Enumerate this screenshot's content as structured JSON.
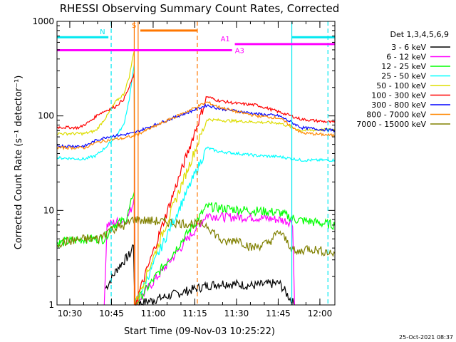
{
  "chart_data": {
    "type": "line",
    "title": "RHESSI Observing Summary Count Rates, Corrected",
    "xlabel": "Start Time (09-Nov-03 10:25:22)",
    "ylabel": "Corrected Count Rate (s⁻¹ detector⁻¹)",
    "x_unit": "minutes after 10:25:22",
    "xlim": [
      0,
      100
    ],
    "ylim": [
      1,
      1000
    ],
    "y_scale": "log",
    "x_ticks": [
      {
        "x": 4.6,
        "label": "10:30"
      },
      {
        "x": 19.6,
        "label": "10:45"
      },
      {
        "x": 34.6,
        "label": "11:00"
      },
      {
        "x": 49.6,
        "label": "11:15"
      },
      {
        "x": 64.6,
        "label": "11:30"
      },
      {
        "x": 79.6,
        "label": "11:45"
      },
      {
        "x": 94.6,
        "label": "12:00"
      }
    ],
    "y_ticks": [
      {
        "y": 1,
        "label": "1"
      },
      {
        "y": 10,
        "label": "10"
      },
      {
        "y": 100,
        "label": "100"
      },
      {
        "y": 1000,
        "label": "1000"
      }
    ],
    "legend_title": "Det 1,3,4,5,6,9",
    "legend_position": "right",
    "series": [
      {
        "name": "3 - 6 keV",
        "color": "#000000",
        "x": [
          17.5,
          22,
          26.5,
          27.5,
          28,
          54,
          60,
          70,
          80,
          85.5
        ],
        "y": [
          1.5,
          2.5,
          3.5,
          4.5,
          1,
          1.6,
          1.7,
          1.6,
          1.7,
          1
        ]
      },
      {
        "name": "6 - 12 keV",
        "color": "#ff00ff",
        "x": [
          17,
          18,
          21,
          25,
          27,
          27.8,
          28,
          54,
          60,
          70,
          80,
          84.8,
          85.5
        ],
        "y": [
          1,
          7,
          7.5,
          8,
          11,
          14,
          1,
          9,
          8.5,
          8.5,
          8,
          7.5,
          1
        ]
      },
      {
        "name": "12 - 25 keV",
        "color": "#00ff00",
        "x": [
          0,
          10,
          17,
          20,
          25,
          27,
          27.8,
          28,
          54,
          60,
          70,
          80,
          86,
          100
        ],
        "y": [
          4.5,
          5,
          5,
          7,
          8,
          13,
          16,
          1,
          11,
          10.5,
          10,
          9.5,
          8,
          7
        ]
      },
      {
        "name": "25 - 50 keV",
        "color": "#00ffff",
        "x": [
          0,
          10,
          14,
          18,
          21,
          24,
          26,
          27.8,
          28,
          54,
          58,
          65,
          72,
          80,
          88,
          100
        ],
        "y": [
          36,
          35,
          38,
          48,
          60,
          80,
          150,
          350,
          1,
          46,
          42,
          40,
          38,
          37,
          34,
          34
        ]
      },
      {
        "name": "50 - 100 keV",
        "color": "#dddd00",
        "x": [
          0,
          10,
          14,
          18,
          21,
          24,
          26,
          27.8,
          28,
          54,
          58,
          65,
          72,
          80,
          88,
          100
        ],
        "y": [
          65,
          65,
          70,
          100,
          140,
          170,
          260,
          500,
          1,
          92,
          90,
          88,
          86,
          84,
          70,
          72
        ]
      },
      {
        "name": "100 - 300 keV",
        "color": "#ff0000",
        "x": [
          0,
          8,
          12,
          15,
          18,
          21,
          24,
          26,
          27.8,
          28,
          54,
          58,
          65,
          72,
          80,
          88,
          100
        ],
        "y": [
          76,
          75,
          88,
          105,
          115,
          125,
          150,
          200,
          280,
          1,
          160,
          145,
          135,
          130,
          110,
          92,
          85
        ]
      },
      {
        "name": "300 - 800 keV",
        "color": "#0000ff",
        "x": [
          0,
          10,
          14,
          18,
          21,
          24,
          26,
          27,
          54,
          58,
          65,
          72,
          80,
          88,
          100
        ],
        "y": [
          48,
          48,
          55,
          60,
          62,
          63,
          65,
          65,
          130,
          120,
          112,
          105,
          100,
          75,
          70
        ]
      },
      {
        "name": "800 - 7000 keV",
        "color": "#ff8800",
        "x": [
          0,
          10,
          14,
          18,
          21,
          24,
          26,
          27,
          54,
          58,
          65,
          72,
          80,
          88,
          100
        ],
        "y": [
          46,
          46,
          52,
          55,
          57,
          58,
          60,
          60,
          140,
          125,
          110,
          100,
          95,
          66,
          62
        ]
      },
      {
        "name": "7000 - 15000 keV",
        "color": "#808000",
        "x": [
          0,
          10,
          15,
          18,
          21,
          25,
          27,
          27.5,
          54,
          60,
          65,
          70,
          76,
          80,
          86,
          90,
          100
        ],
        "y": [
          4.5,
          5,
          5,
          6,
          6.5,
          7,
          8,
          8,
          7,
          4.5,
          5,
          4,
          4.5,
          6,
          3.5,
          4,
          3.5
        ]
      }
    ],
    "annotations": [
      {
        "label": "N",
        "color": "#00e8f0",
        "x_start": 0,
        "x_end": 18.5,
        "y": 680
      },
      {
        "label": "",
        "color": "#00e8f0",
        "x_start": 84.5,
        "x_end": 100,
        "y": 680
      },
      {
        "label": "S",
        "color": "#ff7700",
        "x_start": 30,
        "x_end": 50.5,
        "y": 800
      },
      {
        "label": "A1",
        "color": "#ff00ff",
        "x_start": 64,
        "x_end": 100,
        "y": 575
      },
      {
        "label": "A3",
        "color": "#ff00ff",
        "x_start": 0,
        "x_end": 63,
        "y": 495
      }
    ],
    "vertical_markers": [
      {
        "x": 19.5,
        "color": "#00e8f0",
        "style": "dashed"
      },
      {
        "x": 27.8,
        "color": "#ff7700",
        "style": "solid"
      },
      {
        "x": 29.2,
        "color": "#ff7700",
        "style": "solid"
      },
      {
        "x": 50.5,
        "color": "#ff7700",
        "style": "dashed"
      },
      {
        "x": 84.5,
        "color": "#00e8f0",
        "style": "solid"
      },
      {
        "x": 97.5,
        "color": "#00e8f0",
        "style": "dashed"
      }
    ],
    "footer_timestamp": "25-Oct-2021 08:37"
  }
}
